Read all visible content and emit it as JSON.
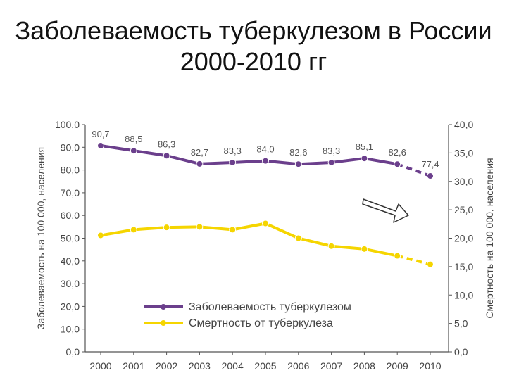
{
  "title": "Заболеваемость туберкулезом в России 2000-2010 гг",
  "chart_data": {
    "type": "line",
    "categories": [
      "2000",
      "2001",
      "2002",
      "2003",
      "2004",
      "2005",
      "2006",
      "2007",
      "2008",
      "2009",
      "2010"
    ],
    "series": [
      {
        "name": "Заболеваемость туберкулезом",
        "axis": "left",
        "color": "#6b3f8c",
        "values": [
          90.7,
          88.5,
          86.3,
          82.7,
          83.3,
          84.0,
          82.6,
          83.3,
          85.1,
          82.6,
          77.4
        ],
        "labels": [
          "90,7",
          "88,5",
          "86,3",
          "82,7",
          "83,3",
          "84,0",
          "82,6",
          "83,3",
          "85,1",
          "82,6",
          "77,4"
        ],
        "dashed_from_index": 9
      },
      {
        "name": "Смертность от туберкулеза",
        "axis": "right",
        "color": "#f5d500",
        "values": [
          20.5,
          21.5,
          21.9,
          22.0,
          21.5,
          22.6,
          20.0,
          18.6,
          18.1,
          16.9,
          15.4
        ],
        "dashed_from_index": 9
      }
    ],
    "ylabel": "Заболеваемость на 100 000, населения",
    "y2label": "Смертность на 100 000, населения",
    "ylim": [
      0,
      100
    ],
    "y2lim": [
      0,
      40
    ],
    "yticks": [
      "0,0",
      "10,0",
      "20,0",
      "30,0",
      "40,0",
      "50,0",
      "60,0",
      "70,0",
      "80,0",
      "90,0",
      "100,0"
    ],
    "y2ticks": [
      "0,0",
      "5,0",
      "10,0",
      "15,0",
      "20,0",
      "25,0",
      "30,0",
      "35,0",
      "40,0"
    ],
    "legend_position": "bottom-center",
    "grid": false,
    "annotation": "arrow pointing right"
  }
}
